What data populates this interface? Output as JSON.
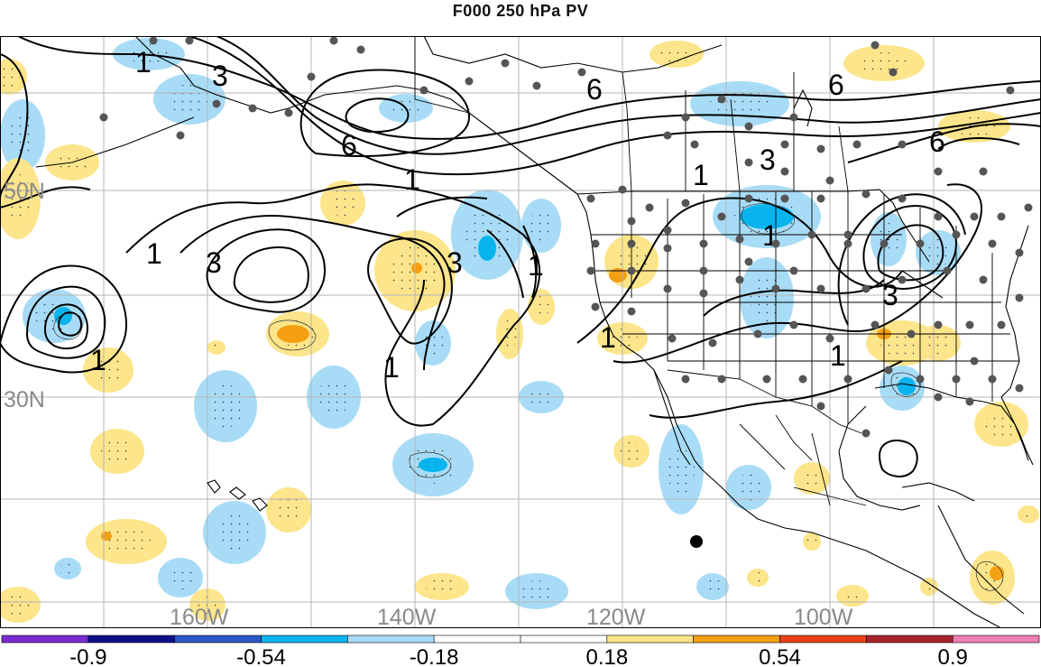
{
  "title": "F000 250 hPa PV",
  "lat_labels": [
    "50N",
    "30N"
  ],
  "lon_labels": [
    "160W",
    "140W",
    "120W",
    "100W"
  ],
  "contour_labels": [
    "1",
    "3",
    "6"
  ],
  "colorbar": {
    "colors": [
      "#7a2bd0",
      "#0f0f8a",
      "#2d57c6",
      "#08b4ee",
      "#a8dcf6",
      "#ffffff",
      "#ffffff",
      "#fce58a",
      "#f5a012",
      "#e64215",
      "#a8252a",
      "#f07fb4"
    ],
    "labels": [
      "-0.9",
      "-0.54",
      "-0.18",
      "0.18",
      "0.54",
      "0.9"
    ]
  },
  "colors": {
    "neg_light": "#a8dcf6",
    "neg_mid": "#08b4ee",
    "pos_light": "#fce58a",
    "pos_mid": "#f5a012",
    "grid": "#b5b5b5",
    "coast": "#000000",
    "station": "#555555"
  }
}
